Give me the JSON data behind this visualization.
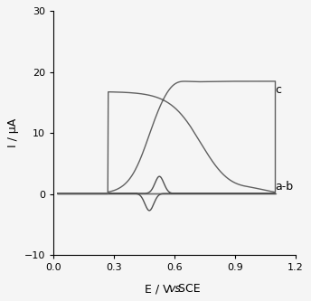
{
  "ylabel": "I / μA",
  "xlim": [
    0,
    1.2
  ],
  "ylim": [
    -10,
    30
  ],
  "xticks": [
    0,
    0.3,
    0.6,
    0.9,
    1.2
  ],
  "yticks": [
    -10,
    0,
    10,
    20,
    30
  ],
  "line_color_ab": "#707070",
  "line_color_b": "#505050",
  "line_color_c": "#606060",
  "label_a_b": "a-b",
  "label_c": "c",
  "background_color": "#f5f5f5",
  "linewidth": 1.0
}
